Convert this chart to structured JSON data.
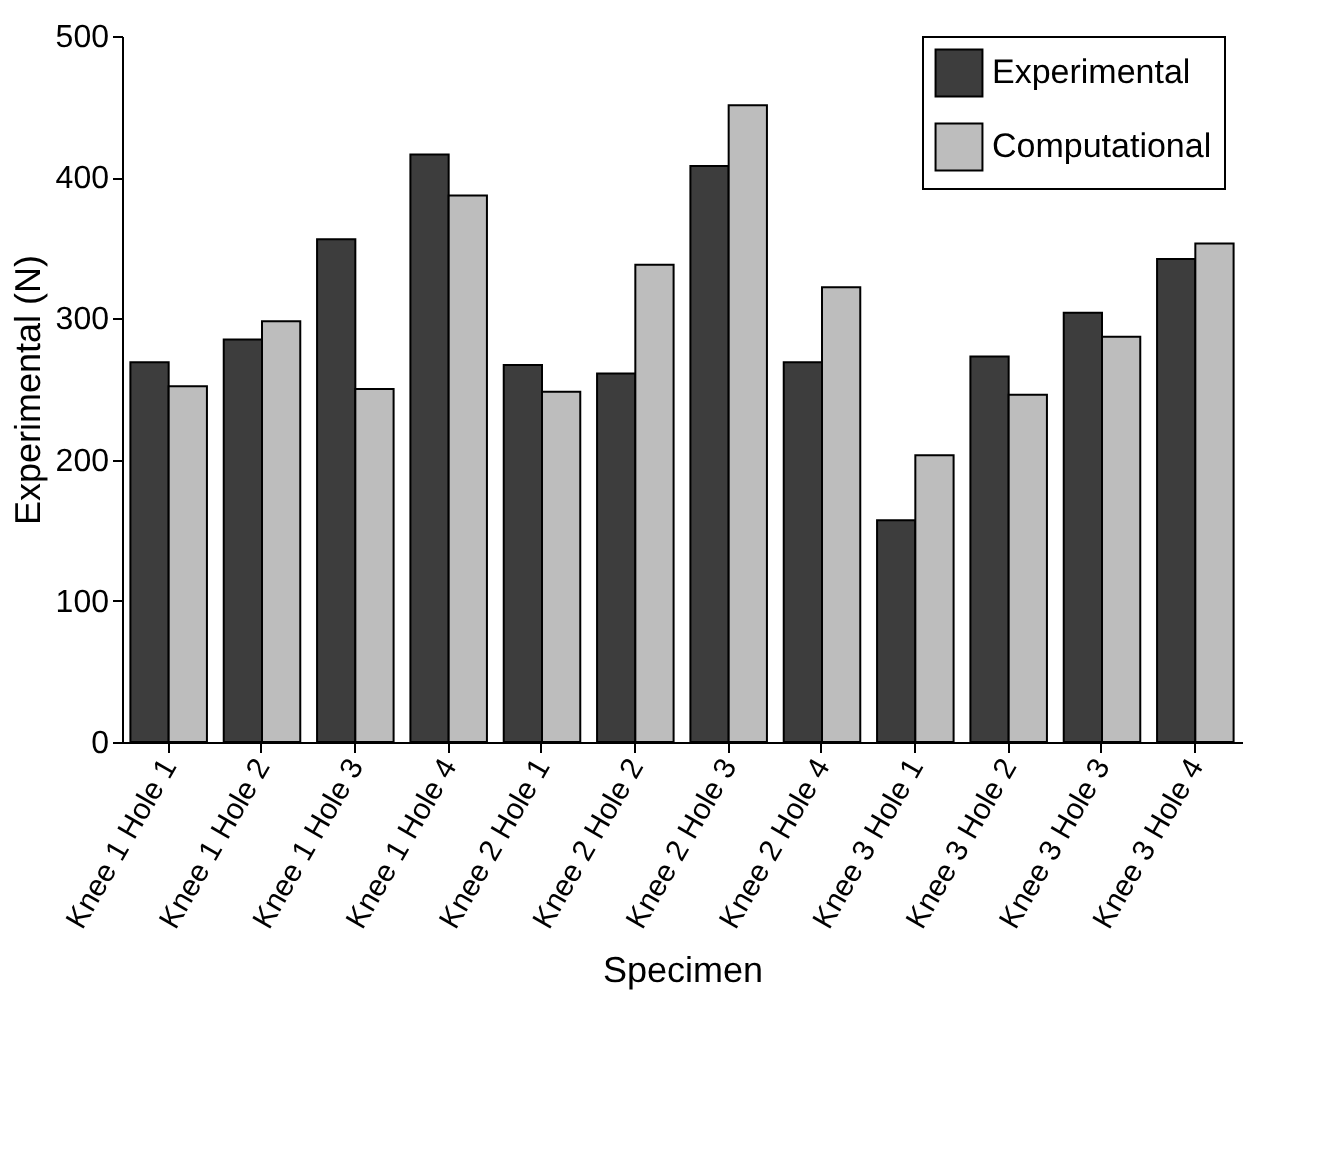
{
  "chart_data": {
    "type": "bar",
    "xlabel": "Specimen",
    "ylabel": "Experimental (N)",
    "categories": [
      "Knee 1 Hole 1",
      "Knee 1 Hole 2",
      "Knee 1 Hole 3",
      "Knee 1 Hole 4",
      "Knee 2 Hole 1",
      "Knee 2 Hole 2",
      "Knee 2 Hole 3",
      "Knee 2 Hole 4",
      "Knee 3 Hole 1",
      "Knee 3 Hole 2",
      "Knee 3 Hole 3",
      "Knee 3 Hole 4"
    ],
    "series": [
      {
        "name": "Experimental",
        "color": "#3d3d3d",
        "values": [
          269,
          285,
          356,
          416,
          267,
          261,
          408,
          269,
          157,
          273,
          304,
          342
        ]
      },
      {
        "name": "Computational",
        "color": "#bdbdbd",
        "values": [
          252,
          298,
          250,
          387,
          248,
          338,
          451,
          322,
          203,
          246,
          287,
          353
        ]
      }
    ],
    "ylim": [
      0,
      500
    ],
    "yticks": [
      0,
      100,
      200,
      300,
      400,
      500
    ],
    "grid": false,
    "legend": "top right"
  }
}
